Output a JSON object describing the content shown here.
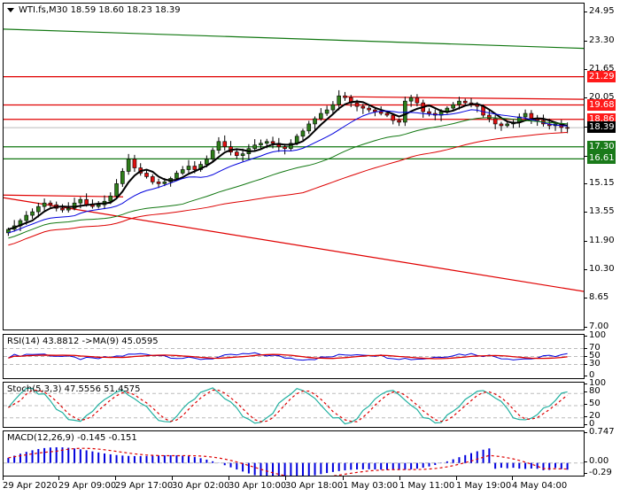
{
  "header": {
    "symbol": "WTI.fs,M30",
    "ohlc": "18.59 18.60 18.23 18.39",
    "title": "WTI.fs,M30  18.59 18.60 18.23 18.39"
  },
  "colors": {
    "bull": "#2e7d1a",
    "bear": "#e01010",
    "red_line": "#e00000",
    "green_line": "#117711",
    "ma_fast": "#000000",
    "ma_mid": "#0000dd",
    "ma_slow_green": "#117711",
    "ma_slow_red": "#dd0000",
    "current_price_bg": "#000000",
    "level_red_bg": "#ff1a1a",
    "level_green_bg": "#1a7a1a",
    "rsi_line": "#0000dd",
    "rsi_ma": "#dd0000",
    "stoch_main": "#20b0a0",
    "stoch_signal": "#dd0000",
    "macd_hist": "#0000dd",
    "macd_signal": "#dd0000"
  },
  "price_axis": {
    "ticks": [
      "24.95",
      "23.30",
      "21.65",
      "20.05",
      "18.40",
      "16.75",
      "15.15",
      "13.55",
      "11.90",
      "10.30",
      "8.65",
      "7.00"
    ],
    "labels": [
      {
        "value": "21.29",
        "type": "red"
      },
      {
        "value": "19.68",
        "type": "red"
      },
      {
        "value": "18.86",
        "type": "red"
      },
      {
        "value": "18.39",
        "type": "current"
      },
      {
        "value": "17.30",
        "type": "green"
      },
      {
        "value": "16.61",
        "type": "green"
      }
    ]
  },
  "rsi": {
    "title": "RSI(14) 43.8812  ->MA(9) 45.0595",
    "ticks": [
      "100",
      "70",
      "50",
      "30",
      "0"
    ]
  },
  "stoch": {
    "title": "Stoch(5,3,3) 47.5556 51.4575",
    "ticks": [
      "100",
      "80",
      "50",
      "20",
      "0"
    ]
  },
  "macd": {
    "title": "MACD(12,26,9) -0.145 -0.151",
    "ticks": [
      "0.747",
      "0.00",
      "-0.29"
    ]
  },
  "time_axis": {
    "labels": [
      "29 Apr 2020",
      "29 Apr 09:00",
      "29 Apr 17:00",
      "30 Apr 02:00",
      "30 Apr 10:00",
      "30 Apr 18:00",
      "1 May 03:00",
      "1 May 11:00",
      "1 May 19:00",
      "4 May 04:00"
    ]
  },
  "chart_data": [
    {
      "type": "candlestick",
      "title": "WTI.fs,M30  18.59 18.60 18.23 18.39",
      "ylim": [
        7.0,
        24.95
      ],
      "y_ticks": [
        24.95,
        23.3,
        21.65,
        20.05,
        18.4,
        16.75,
        15.15,
        13.55,
        11.9,
        10.3,
        8.65,
        7.0
      ],
      "x_tick_labels": [
        "29 Apr 2020",
        "29 Apr 09:00",
        "29 Apr 17:00",
        "30 Apr 02:00",
        "30 Apr 10:00",
        "30 Apr 18:00",
        "1 May 03:00",
        "1 May 11:00",
        "1 May 19:00",
        "4 May 04:00"
      ],
      "last": {
        "open": 18.59,
        "high": 18.6,
        "low": 18.23,
        "close": 18.39
      },
      "horizontal_levels": [
        {
          "value": 21.29,
          "color": "red"
        },
        {
          "value": 19.68,
          "color": "red"
        },
        {
          "value": 18.86,
          "color": "red"
        },
        {
          "value": 17.3,
          "color": "green"
        },
        {
          "value": 16.61,
          "color": "green"
        }
      ],
      "trend_lines": [
        {
          "name": "green downtrend",
          "from": [
            0,
            24.0
          ],
          "to": [
            657,
            22.9
          ]
        },
        {
          "name": "red downtrend",
          "from": [
            0,
            14.4
          ],
          "to": [
            657,
            9.05
          ]
        },
        {
          "name": "red resistance top",
          "from": [
            385,
            20.15
          ],
          "to": [
            657,
            20.0
          ]
        }
      ],
      "close_series_approx": [
        12.6,
        12.8,
        13.1,
        13.4,
        13.6,
        13.9,
        14.1,
        14.0,
        13.8,
        13.7,
        13.8,
        14.1,
        14.3,
        14.0,
        13.9,
        14.0,
        14.2,
        14.5,
        15.2,
        15.9,
        16.6,
        16.1,
        15.8,
        15.6,
        15.3,
        15.2,
        15.3,
        15.5,
        15.8,
        16.0,
        16.2,
        16.0,
        16.3,
        16.6,
        17.1,
        17.6,
        17.3,
        17.0,
        16.8,
        16.9,
        17.2,
        17.4,
        17.5,
        17.6,
        17.5,
        17.3,
        17.2,
        17.5,
        17.9,
        18.2,
        18.6,
        18.9,
        19.2,
        19.4,
        19.7,
        20.2,
        20.1,
        19.8,
        19.6,
        19.5,
        19.4,
        19.3,
        19.2,
        19.1,
        18.8,
        18.7,
        19.9,
        20.1,
        19.8,
        19.3,
        19.2,
        19.1,
        19.3,
        19.5,
        19.7,
        19.9,
        19.8,
        19.7,
        19.6,
        19.1,
        18.9,
        18.6,
        18.5,
        18.6,
        18.7,
        19.0,
        19.2,
        18.9,
        18.8,
        18.6,
        18.5,
        18.6,
        18.4,
        18.39
      ]
    },
    {
      "type": "line",
      "title": "RSI(14) 43.8812 ->MA(9) 45.0595",
      "ylim": [
        0,
        100
      ],
      "levels": [
        70,
        50,
        30
      ],
      "series": [
        {
          "name": "RSI(14)",
          "last": 43.8812
        },
        {
          "name": "MA(9)",
          "last": 45.0595
        }
      ]
    },
    {
      "type": "line",
      "title": "Stoch(5,3,3) 47.5556 51.4575",
      "ylim": [
        0,
        100
      ],
      "levels": [
        80,
        50,
        20
      ],
      "series": [
        {
          "name": "%K",
          "last": 47.5556
        },
        {
          "name": "%D",
          "last": 51.4575
        }
      ]
    },
    {
      "type": "bar",
      "title": "MACD(12,26,9) -0.145 -0.151",
      "ylim": [
        -0.29,
        0.747
      ],
      "series": [
        {
          "name": "MACD",
          "last": -0.145
        },
        {
          "name": "Signal",
          "last": -0.151
        }
      ]
    }
  ]
}
